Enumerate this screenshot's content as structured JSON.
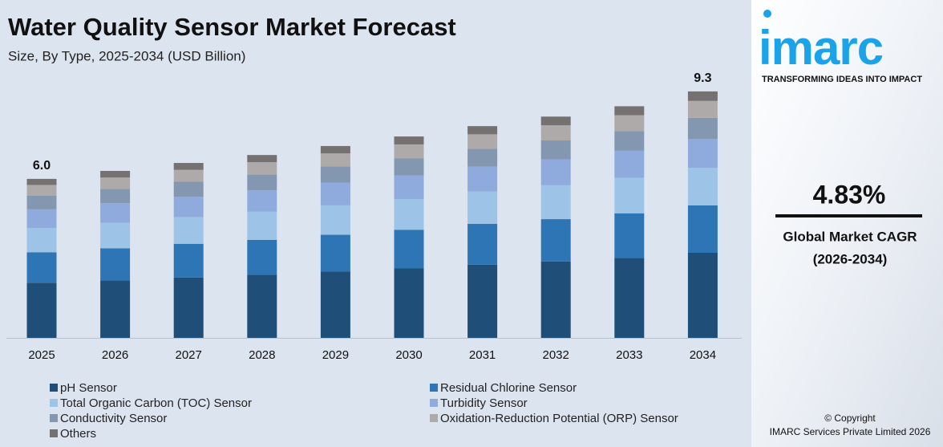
{
  "chart_data": {
    "type": "stacked_bar",
    "title": "Water Quality Sensor Market Forecast",
    "subtitle": "Size, By Type, 2025-2034 (USD Billion)",
    "categories": [
      "2025",
      "2026",
      "2027",
      "2028",
      "2029",
      "2030",
      "2031",
      "2032",
      "2033",
      "2034"
    ],
    "ylim": [
      0,
      9.6
    ],
    "series": [
      {
        "name": "pH Sensor",
        "color": "#1f4e79",
        "values": [
          2.08,
          2.17,
          2.28,
          2.38,
          2.5,
          2.62,
          2.76,
          2.88,
          3.02,
          3.21
        ]
      },
      {
        "name": "Residual Chlorine Sensor",
        "color": "#2e75b6",
        "values": [
          1.15,
          1.21,
          1.27,
          1.32,
          1.39,
          1.46,
          1.54,
          1.6,
          1.68,
          1.79
        ]
      },
      {
        "name": "Total Organic Carbon (TOC) Sensor",
        "color": "#9dc3e6",
        "values": [
          0.92,
          0.96,
          1.01,
          1.06,
          1.11,
          1.16,
          1.22,
          1.28,
          1.34,
          1.42
        ]
      },
      {
        "name": "Turbidity Sensor",
        "color": "#8faadc",
        "values": [
          0.7,
          0.74,
          0.77,
          0.81,
          0.85,
          0.89,
          0.94,
          0.98,
          1.02,
          1.09
        ]
      },
      {
        "name": "Conductivity Sensor",
        "color": "#8497b0",
        "values": [
          0.51,
          0.54,
          0.56,
          0.59,
          0.62,
          0.65,
          0.68,
          0.71,
          0.74,
          0.79
        ]
      },
      {
        "name": "Oxidation-Reduction Potential (ORP) Sensor",
        "color": "#aeaaaa",
        "values": [
          0.41,
          0.43,
          0.45,
          0.47,
          0.49,
          0.52,
          0.54,
          0.57,
          0.6,
          0.64
        ]
      },
      {
        "name": "Others",
        "color": "#767171",
        "values": [
          0.23,
          0.25,
          0.26,
          0.27,
          0.28,
          0.3,
          0.31,
          0.33,
          0.34,
          0.36
        ]
      }
    ],
    "totals": {
      "values": [
        6.0,
        null,
        null,
        null,
        null,
        null,
        null,
        null,
        null,
        9.3
      ],
      "value_labels": [
        "6.0",
        null,
        null,
        null,
        null,
        null,
        null,
        null,
        null,
        "9.3"
      ]
    }
  },
  "sidebar": {
    "logo": "imarc",
    "tagline": "TRANSFORMING IDEAS INTO IMPACT",
    "cagr": "4.83%",
    "cagr_label": "Global Market CAGR",
    "cagr_period": "(2026-2034)",
    "copyright": "© Copyright",
    "company": "IMARC Services Private Limited 2026"
  }
}
